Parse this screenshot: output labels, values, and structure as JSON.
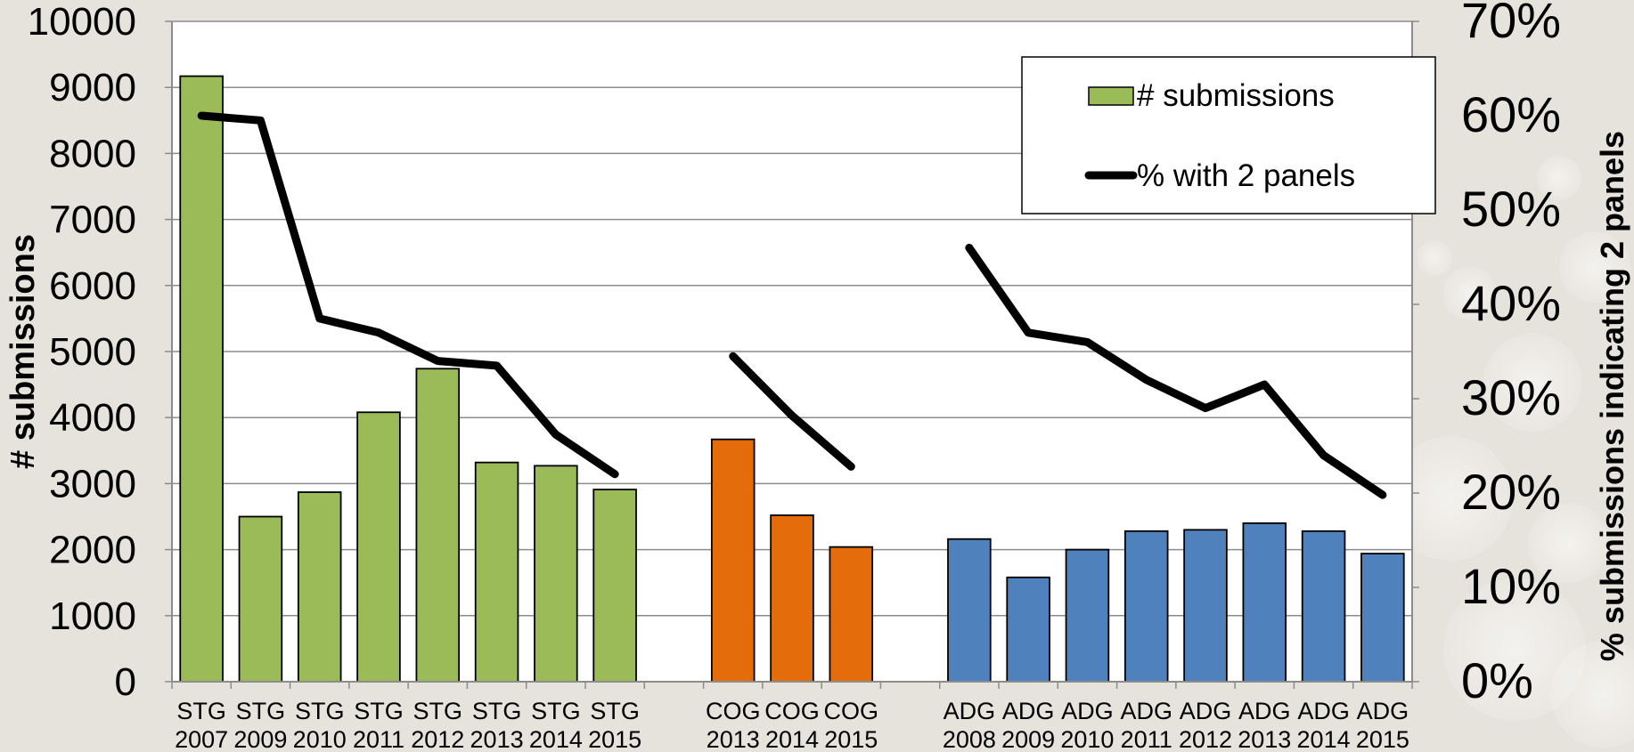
{
  "chart_data": {
    "type": "bar",
    "title": "",
    "ylabel": "# submissions",
    "y2label": "% submissions indicating 2 panels",
    "ylim": [
      0,
      10000
    ],
    "y2lim": [
      0,
      0.7
    ],
    "yticks": [
      "0",
      "1000",
      "2000",
      "3000",
      "4000",
      "5000",
      "6000",
      "7000",
      "8000",
      "9000",
      "10000"
    ],
    "y2ticks": [
      "0%",
      "10%",
      "20%",
      "30%",
      "40%",
      "50%",
      "60%",
      "70%"
    ],
    "grid": true,
    "legend_position": "top-right",
    "legend": [
      {
        "label": "# submissions",
        "kind": "bar"
      },
      {
        "label": "% with 2 panels",
        "kind": "line"
      }
    ],
    "groups": [
      {
        "name": "STG",
        "color": "#9bbb59",
        "categories": [
          "STG 2007",
          "STG 2009",
          "STG 2010",
          "STG 2011",
          "STG 2012",
          "STG 2013",
          "STG 2014",
          "STG 2015"
        ],
        "submissions": [
          9170,
          2500,
          2870,
          4080,
          4740,
          3320,
          3270,
          2910
        ],
        "pct_two_panels": [
          0.6,
          0.595,
          0.385,
          0.37,
          0.34,
          0.335,
          0.262,
          0.22
        ]
      },
      {
        "name": "COG",
        "color": "#e46c0a",
        "categories": [
          "COG 2013",
          "COG 2014",
          "COG 2015"
        ],
        "submissions": [
          3670,
          2520,
          2040
        ],
        "pct_two_panels": [
          0.345,
          0.282,
          0.228
        ]
      },
      {
        "name": "ADG",
        "color": "#4f81bd",
        "categories": [
          "ADG 2008",
          "ADG 2009",
          "ADG 2010",
          "ADG 2011",
          "ADG 2012",
          "ADG 2013",
          "ADG 2014",
          "ADG 2015"
        ],
        "submissions": [
          2160,
          1580,
          2000,
          2280,
          2300,
          2400,
          2280,
          1940
        ],
        "pct_two_panels": [
          0.46,
          0.37,
          0.36,
          0.32,
          0.29,
          0.315,
          0.24,
          0.198
        ]
      }
    ]
  }
}
